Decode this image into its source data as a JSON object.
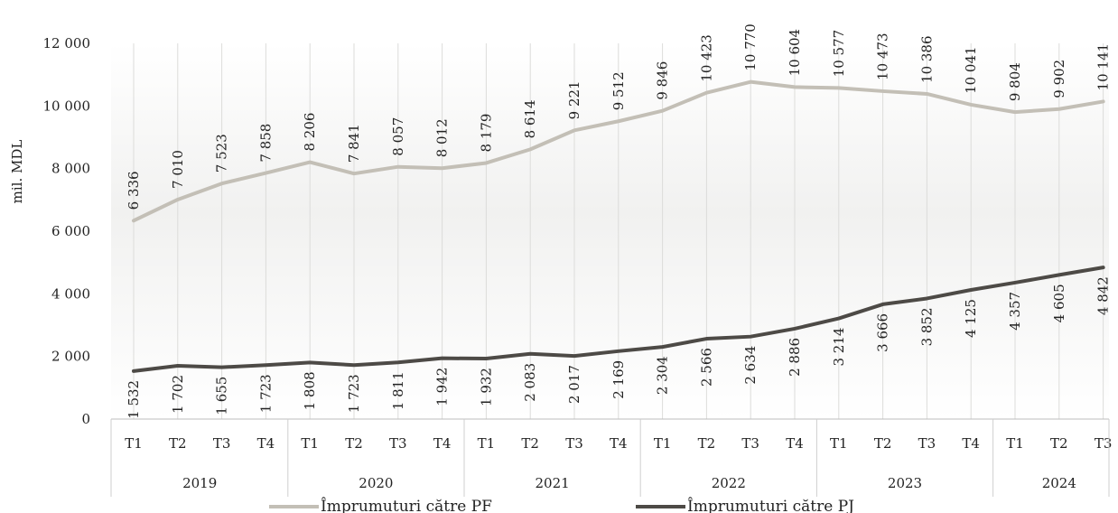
{
  "chart_data": {
    "type": "line",
    "ylabel": "mil. MDL",
    "ylim": [
      0,
      12000
    ],
    "yticks": [
      0,
      2000,
      4000,
      6000,
      8000,
      10000,
      12000
    ],
    "ytick_labels": [
      "0",
      "2 000",
      "4 000",
      "6 000",
      "8 000",
      "10 000",
      "12 000"
    ],
    "categories": [
      "T1",
      "T2",
      "T3",
      "T4",
      "T1",
      "T2",
      "T3",
      "T4",
      "T1",
      "T2",
      "T3",
      "T4",
      "T1",
      "T2",
      "T3",
      "T4",
      "T1",
      "T2",
      "T3",
      "T4",
      "T1",
      "T2",
      "T3"
    ],
    "year_groups": [
      {
        "label": "2019",
        "count": 4
      },
      {
        "label": "2020",
        "count": 4
      },
      {
        "label": "2021",
        "count": 4
      },
      {
        "label": "2022",
        "count": 4
      },
      {
        "label": "2023",
        "count": 4
      },
      {
        "label": "2024",
        "count": 3
      }
    ],
    "series": [
      {
        "name": "Împrumuturi către PF",
        "color": "#c3bfb6",
        "values": [
          6336,
          7010,
          7523,
          7858,
          8206,
          7841,
          8057,
          8012,
          8179,
          8614,
          9221,
          9512,
          9846,
          10423,
          10770,
          10604,
          10577,
          10473,
          10386,
          10041,
          9804,
          9902,
          10141
        ],
        "labels": [
          "6 336",
          "7 010",
          "7 523",
          "7 858",
          "8 206",
          "7 841",
          "8 057",
          "8 012",
          "8 179",
          "8 614",
          "9 221",
          "9 512",
          "9 846",
          "10 423",
          "10 770",
          "10 604",
          "10 577",
          "10 473",
          "10 386",
          "10 041",
          "9 804",
          "9 902",
          "10 141"
        ]
      },
      {
        "name": "Împrumuturi către PJ",
        "color": "#4d4a46",
        "values": [
          1532,
          1702,
          1655,
          1723,
          1808,
          1723,
          1811,
          1942,
          1932,
          2083,
          2017,
          2169,
          2304,
          2566,
          2634,
          2886,
          3214,
          3666,
          3852,
          4125,
          4357,
          4605,
          4842
        ],
        "labels": [
          "1 532",
          "1 702",
          "1 655",
          "1 723",
          "1 808",
          "1 723",
          "1 811",
          "1 942",
          "1 932",
          "2 083",
          "2 017",
          "2 169",
          "2 304",
          "2 566",
          "2 634",
          "2 886",
          "3 214",
          "3 666",
          "3 852",
          "4 125",
          "4 357",
          "4 605",
          "4 842"
        ]
      }
    ],
    "grid": "vertical",
    "legend_position": "bottom"
  }
}
